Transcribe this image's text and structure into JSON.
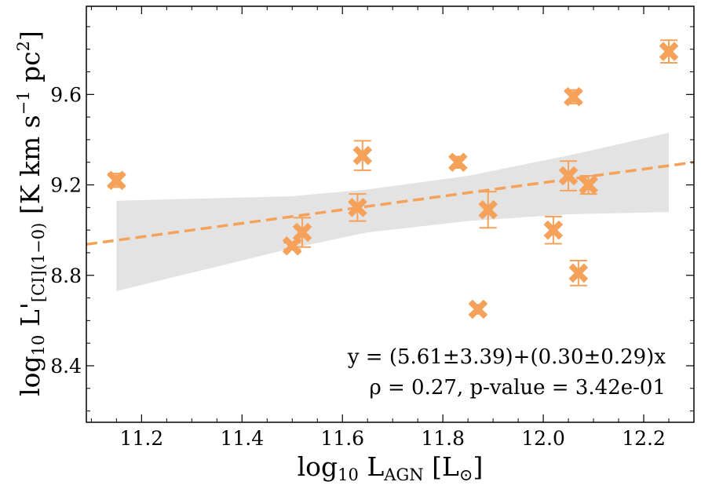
{
  "chart_data": {
    "type": "scatter",
    "xlabel": {
      "base": "log",
      "base_sub": "10",
      "main": " L",
      "main_sub": "AGN",
      "unit": " [L",
      "unit_sub": "⊙",
      "close": "]"
    },
    "ylabel": {
      "base": "log",
      "base_sub": "10",
      "main": " L'",
      "main_sub": "[CI](1−0)",
      "unit": " [K km s",
      "unit_sup1": "−1",
      "unit2": " pc",
      "unit_sup2": "2",
      "close": "]"
    },
    "xlim": [
      11.09,
      12.3
    ],
    "ylim": [
      8.15,
      9.99
    ],
    "x_ticks": [
      11.2,
      11.4,
      11.6,
      11.8,
      12.0,
      12.2
    ],
    "x_tick_labels": [
      "11.2",
      "11.4",
      "11.6",
      "11.8",
      "12.0",
      "12.2"
    ],
    "y_ticks": [
      8.4,
      8.8,
      9.2,
      9.6
    ],
    "y_tick_labels": [
      "8.4",
      "8.8",
      "9.2",
      "9.6"
    ],
    "marker_color": "#f5a15a",
    "fit_color": "#f5a15a",
    "band_color": "#e3e3e3",
    "points": [
      {
        "x": 11.15,
        "y": 9.22,
        "err": 0.03
      },
      {
        "x": 11.5,
        "y": 8.93,
        "err": 0.015
      },
      {
        "x": 11.52,
        "y": 8.99,
        "err": 0.065
      },
      {
        "x": 11.63,
        "y": 9.1,
        "err": 0.06
      },
      {
        "x": 11.64,
        "y": 9.33,
        "err": 0.065
      },
      {
        "x": 11.83,
        "y": 9.3,
        "err": 0.025
      },
      {
        "x": 11.87,
        "y": 8.65,
        "err": 0.02
      },
      {
        "x": 11.89,
        "y": 9.09,
        "err": 0.08
      },
      {
        "x": 12.02,
        "y": 9.0,
        "err": 0.06
      },
      {
        "x": 12.05,
        "y": 9.24,
        "err": 0.065
      },
      {
        "x": 12.06,
        "y": 9.59,
        "err": 0.03
      },
      {
        "x": 12.07,
        "y": 8.81,
        "err": 0.055
      },
      {
        "x": 12.09,
        "y": 9.2,
        "err": 0.04
      },
      {
        "x": 12.25,
        "y": 9.79,
        "err": 0.05
      }
    ],
    "fit": {
      "intercept": 5.61,
      "slope": 0.3
    },
    "confidence_band": {
      "x": [
        11.15,
        11.5,
        11.65,
        11.85,
        12.05,
        12.25
      ],
      "upper": [
        9.13,
        9.15,
        9.18,
        9.24,
        9.33,
        9.43
      ],
      "lower": [
        8.73,
        8.92,
        8.99,
        9.04,
        9.07,
        9.08
      ]
    },
    "annotations": {
      "equation": "y = (5.61±3.39)+(0.30±0.29)x",
      "stats": "ρ = 0.27, p-value = 3.42e-01"
    }
  }
}
